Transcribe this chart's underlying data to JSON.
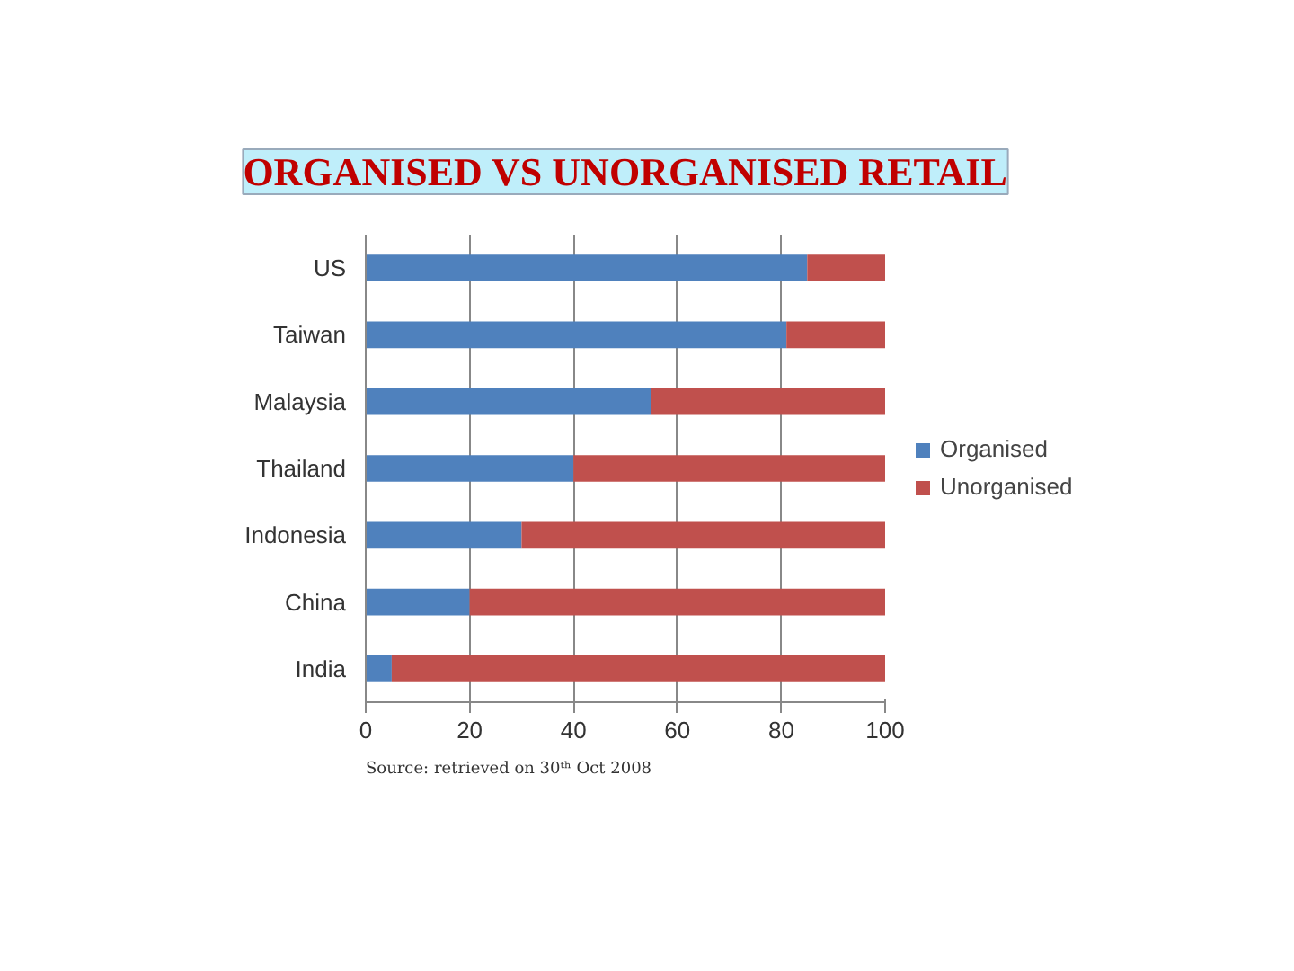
{
  "chart_data": {
    "type": "bar",
    "orientation": "horizontal",
    "stacked": true,
    "title": "ORGANISED VS UNORGANISED RETAIL",
    "categories": [
      "US",
      "Taiwan",
      "Malaysia",
      "Thailand",
      "Indonesia",
      "China",
      "India"
    ],
    "series": [
      {
        "name": "Organised",
        "color": "#4f81bd",
        "values": [
          85,
          81,
          55,
          40,
          30,
          20,
          5
        ]
      },
      {
        "name": "Unorganised",
        "color": "#c0504d",
        "values": [
          15,
          19,
          45,
          60,
          70,
          80,
          95
        ]
      }
    ],
    "xlim": [
      0,
      100
    ],
    "xticks": [
      0,
      20,
      40,
      60,
      80,
      100
    ],
    "grid": "x",
    "legend": "right",
    "annotations": [
      "Source: retrieved on 30ᵗʰ Oct 2008"
    ]
  }
}
